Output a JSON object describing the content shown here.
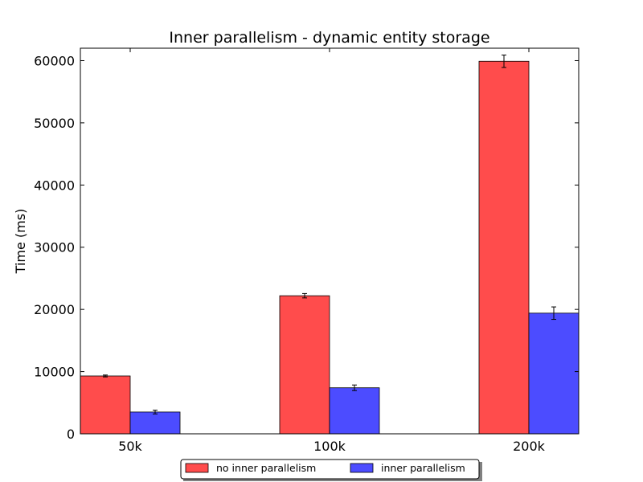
{
  "chart_data": {
    "type": "bar",
    "title": "Inner parallelism - dynamic entity storage",
    "xlabel": "",
    "ylabel": "Time (ms)",
    "categories": [
      "50k",
      "100k",
      "200k"
    ],
    "ylim": [
      0,
      62000
    ],
    "yticks": [
      0,
      10000,
      20000,
      30000,
      40000,
      50000,
      60000
    ],
    "ytick_labels": [
      "0",
      "10000",
      "20000",
      "30000",
      "40000",
      "50000",
      "60000"
    ],
    "grid": false,
    "legend_position": "bottom-center",
    "series": [
      {
        "name": "no inner parallelism",
        "color": "#ff4c4c",
        "values": [
          9300,
          22200,
          59900
        ],
        "errors": [
          150,
          350,
          1000
        ]
      },
      {
        "name": "inner parallelism",
        "color": "#4c4cff",
        "values": [
          3500,
          7400,
          19400
        ],
        "errors": [
          300,
          450,
          1000
        ]
      }
    ]
  }
}
